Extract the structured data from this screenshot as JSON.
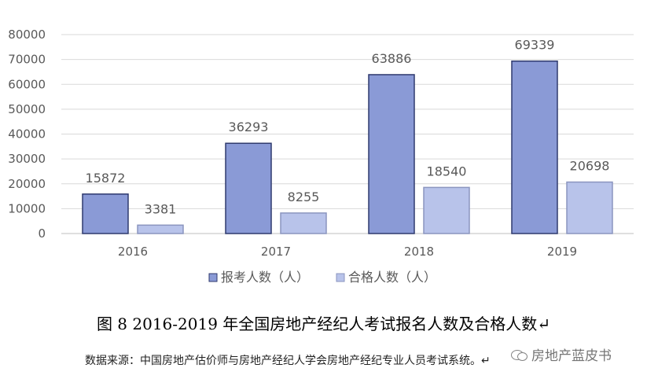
{
  "chart_data": {
    "type": "bar",
    "categories": [
      "2016",
      "2017",
      "2018",
      "2019"
    ],
    "series": [
      {
        "name": "报考人数（人）",
        "values": [
          15872,
          36293,
          63886,
          69339
        ],
        "color": "#8a9ad6"
      },
      {
        "name": "合格人数（人）",
        "values": [
          3381,
          8255,
          18540,
          20698
        ],
        "color": "#b8c3ea"
      }
    ],
    "ylim": [
      0,
      80000
    ],
    "yticks": [
      0,
      10000,
      20000,
      30000,
      40000,
      50000,
      60000,
      70000,
      80000
    ],
    "grid": true,
    "legend": "bottom",
    "data_labels": true
  },
  "caption": "图 8 2016-2019 年全国房地产经纪人考试报名人数及合格人数↵",
  "source": "数据来源：中国房地产估价师与房地产经纪人学会房地产经纪专业人员考试系统。↵",
  "watermark": {
    "text": "房地产蓝皮书",
    "icon": "wechat-icon"
  }
}
